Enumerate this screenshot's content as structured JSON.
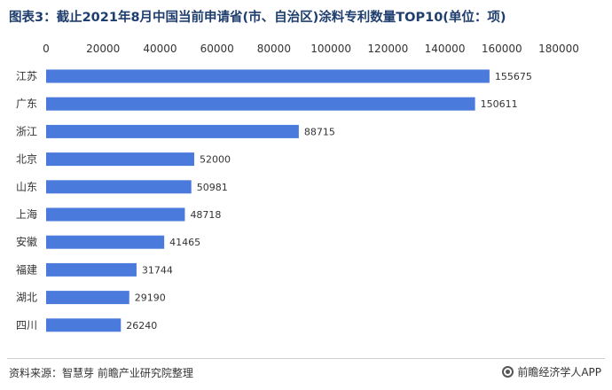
{
  "title": "图表3：截止2021年8月中国当前申请省(市、自治区)涂料专利数量TOP10(单位：项)",
  "source": "资料来源：智慧芽 前瞻产业研究院整理",
  "brand": "前瞻经济学人APP",
  "colors": {
    "bar": "#4a7adb",
    "title": "#1f3e6e"
  },
  "chart_data": {
    "type": "bar",
    "orientation": "horizontal",
    "categories": [
      "江苏",
      "广东",
      "浙江",
      "北京",
      "山东",
      "上海",
      "安徽",
      "福建",
      "湖北",
      "四川"
    ],
    "values": [
      155675,
      150611,
      88715,
      52000,
      50981,
      48718,
      41465,
      31744,
      29190,
      26240
    ],
    "xlim": [
      0,
      180000
    ],
    "xticks": [
      0,
      20000,
      40000,
      60000,
      80000,
      100000,
      120000,
      140000,
      160000,
      180000
    ],
    "axis_position": "top",
    "grid": false,
    "legend": "none"
  }
}
